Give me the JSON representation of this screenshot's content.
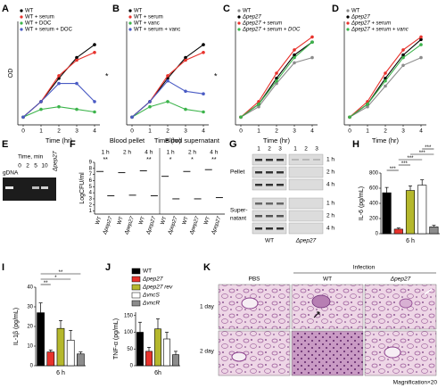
{
  "chart_data": [
    {
      "type": "line",
      "label": "A",
      "xlabel": "Time (hr)",
      "ylabel": "OD",
      "annotation": "*",
      "x": [
        0,
        1,
        2,
        3,
        4
      ],
      "xlim": [
        -0.3,
        4.3
      ],
      "xticks": [
        0,
        1,
        2,
        3,
        4
      ],
      "ylim": [
        0,
        2.0
      ],
      "series": [
        {
          "name": "WT",
          "color": "#000000",
          "values": [
            0.15,
            0.45,
            0.9,
            1.3,
            1.55
          ]
        },
        {
          "name": "WT + serum",
          "color": "#e8322c",
          "values": [
            0.15,
            0.45,
            0.95,
            1.25,
            1.4
          ]
        },
        {
          "name": "WT + DOC",
          "color": "#3cb44b",
          "values": [
            0.15,
            0.3,
            0.35,
            0.3,
            0.25
          ]
        },
        {
          "name": "WT + serum + DOC",
          "color": "#4a5bc4",
          "values": [
            0.15,
            0.45,
            0.8,
            0.8,
            0.45
          ]
        }
      ]
    },
    {
      "type": "line",
      "label": "B",
      "xlabel": "Time (hr)",
      "annotation": "*",
      "x": [
        0,
        1,
        2,
        3,
        4
      ],
      "xlim": [
        -0.3,
        4.3
      ],
      "xticks": [
        0,
        1,
        2,
        3,
        4
      ],
      "ylim": [
        0,
        2.0
      ],
      "series": [
        {
          "name": "WT",
          "color": "#000000",
          "values": [
            0.15,
            0.45,
            0.9,
            1.3,
            1.55
          ]
        },
        {
          "name": "WT + serum",
          "color": "#e8322c",
          "values": [
            0.15,
            0.45,
            0.95,
            1.25,
            1.4
          ]
        },
        {
          "name": "WT + vanc",
          "color": "#3cb44b",
          "values": [
            0.15,
            0.35,
            0.45,
            0.3,
            0.25
          ]
        },
        {
          "name": "WT + serum + vanc",
          "color": "#4a5bc4",
          "values": [
            0.15,
            0.45,
            0.85,
            0.65,
            0.6
          ]
        }
      ]
    },
    {
      "type": "line",
      "label": "C",
      "xlabel": "Time (hr)",
      "x": [
        0,
        1,
        2,
        3,
        4
      ],
      "xlim": [
        -0.3,
        4.3
      ],
      "xticks": [
        0,
        1,
        2,
        3,
        4
      ],
      "ylim": [
        0,
        2.0
      ],
      "series": [
        {
          "name": "WT",
          "color": "#8c8c8c",
          "values": [
            0.15,
            0.35,
            0.8,
            1.2,
            1.3
          ]
        },
        {
          "name": "Δpep27",
          "color": "#000000",
          "values": [
            0.15,
            0.4,
            0.9,
            1.35,
            1.6
          ]
        },
        {
          "name": "Δpep27 + serum",
          "color": "#e8322c",
          "values": [
            0.15,
            0.45,
            1.0,
            1.45,
            1.7
          ]
        },
        {
          "name": "Δpep27 + serum + DOC",
          "color": "#3cb44b",
          "values": [
            0.15,
            0.4,
            0.85,
            1.3,
            1.6
          ]
        }
      ]
    },
    {
      "type": "line",
      "label": "D",
      "xlabel": "Time (hr)",
      "x": [
        0,
        1,
        2,
        3,
        4
      ],
      "xlim": [
        -0.3,
        4.3
      ],
      "xticks": [
        0,
        1,
        2,
        3,
        4
      ],
      "ylim": [
        0,
        2.0
      ],
      "series": [
        {
          "name": "WT",
          "color": "#8c8c8c",
          "values": [
            0.15,
            0.35,
            0.75,
            1.15,
            1.3
          ]
        },
        {
          "name": "Δpep27",
          "color": "#000000",
          "values": [
            0.15,
            0.4,
            0.9,
            1.35,
            1.65
          ]
        },
        {
          "name": "Δpep27 + serum",
          "color": "#e8322c",
          "values": [
            0.15,
            0.45,
            1.0,
            1.45,
            1.7
          ]
        },
        {
          "name": "Δpep27 + serum + vanc",
          "color": "#3cb44b",
          "values": [
            0.15,
            0.4,
            0.85,
            1.3,
            1.55
          ]
        }
      ]
    },
    {
      "type": "dot",
      "label": "F",
      "ylabel": "LogCFU/ml",
      "ylim": [
        0.5,
        9
      ],
      "yticks": [
        1,
        2,
        3,
        4,
        5,
        6,
        7,
        8,
        9
      ],
      "groups": [
        {
          "title": "Blood pellet",
          "color": "#e8322c",
          "times": [
            "1 h",
            "2 h",
            "4 h"
          ],
          "categories": [
            "WT",
            "Δpep27",
            "WT",
            "Δpep27",
            "WT",
            "Δpep27"
          ],
          "values": [
            7.5,
            3.5,
            7.3,
            3.6,
            7.6,
            3.5
          ],
          "significance": [
            "**",
            null,
            "**"
          ]
        },
        {
          "title": "Blood supernatant",
          "color": "#e8322c",
          "times": [
            "1 h",
            "2 h",
            "4 h"
          ],
          "categories": [
            "WT",
            "Δpep27",
            "WT",
            "Δpep27",
            "WT",
            "Δpep27"
          ],
          "values": [
            6.7,
            3.0,
            7.5,
            3.0,
            7.8,
            3.2
          ],
          "significance": [
            "*",
            "*",
            "**"
          ]
        }
      ]
    },
    {
      "type": "bar",
      "label": "H",
      "ylabel": "IL-6 (pg/mL)",
      "categories": [
        "6 h"
      ],
      "ylim": [
        0,
        800
      ],
      "yticks": [
        0,
        200,
        400,
        600,
        800
      ],
      "series": [
        {
          "color": "#000000",
          "values": [
            540
          ],
          "errors": [
            70
          ]
        },
        {
          "color": "#e8322c",
          "values": [
            60
          ],
          "errors": [
            15
          ]
        },
        {
          "color": "#b5b82c",
          "values": [
            570
          ],
          "errors": [
            60
          ]
        },
        {
          "color": "#ffffff",
          "values": [
            640
          ],
          "errors": [
            70
          ]
        },
        {
          "color": "#8c8c8c",
          "values": [
            90
          ],
          "errors": [
            20
          ]
        }
      ],
      "significance": [
        {
          "pair": [
            0,
            1
          ],
          "label": "***"
        },
        {
          "pair": [
            1,
            2
          ],
          "label": "***"
        },
        {
          "pair": [
            1,
            3
          ],
          "label": "***"
        },
        {
          "pair": [
            2,
            4
          ],
          "label": "***"
        },
        {
          "pair": [
            3,
            4
          ],
          "label": "***"
        }
      ]
    },
    {
      "type": "bar",
      "label": "I",
      "ylabel": "IL-1β (pg/mL)",
      "categories": [
        "6 h"
      ],
      "ylim": [
        0,
        40
      ],
      "yticks": [
        0,
        10,
        20,
        30,
        40
      ],
      "series": [
        {
          "color": "#000000",
          "values": [
            27
          ],
          "errors": [
            5
          ]
        },
        {
          "color": "#e8322c",
          "values": [
            7
          ],
          "errors": [
            1
          ]
        },
        {
          "color": "#b5b82c",
          "values": [
            19
          ],
          "errors": [
            4
          ]
        },
        {
          "color": "#ffffff",
          "values": [
            13
          ],
          "errors": [
            5
          ]
        },
        {
          "color": "#8c8c8c",
          "values": [
            6
          ],
          "errors": [
            1
          ]
        }
      ],
      "significance": [
        {
          "pair": [
            0,
            1
          ],
          "label": "**"
        },
        {
          "pair": [
            0,
            3
          ],
          "label": "*"
        },
        {
          "pair": [
            0,
            4
          ],
          "label": "**"
        }
      ]
    },
    {
      "type": "bar",
      "label": "J",
      "ylabel": "TNF-α (pg/mL)",
      "categories": [
        "6h"
      ],
      "ylim": [
        0,
        160
      ],
      "yticks": [
        0,
        50,
        100,
        150
      ],
      "series": [
        {
          "name": "WT",
          "color": "#000000",
          "values": [
            100
          ],
          "errors": [
            30
          ]
        },
        {
          "name": "Δpep27",
          "color": "#e8322c",
          "values": [
            43
          ],
          "errors": [
            12
          ]
        },
        {
          "name": "Δpep27 rev",
          "color": "#b5b82c",
          "values": [
            110
          ],
          "errors": [
            30
          ]
        },
        {
          "name": "ΔvncS",
          "color": "#ffffff",
          "values": [
            80
          ],
          "errors": [
            20
          ]
        },
        {
          "name": "ΔvncR",
          "color": "#8c8c8c",
          "values": [
            33
          ],
          "errors": [
            10
          ]
        }
      ]
    }
  ],
  "panels": {
    "E": {
      "label": "E",
      "gel_label": "gDNA",
      "time_title": "Time, min",
      "times": [
        0,
        2,
        5,
        10
      ],
      "strain": "Δpep27"
    },
    "G": {
      "label": "G",
      "lanes": [
        "1",
        "2",
        "3"
      ],
      "blocks": [
        {
          "name": [
            "Pellet"
          ],
          "times": [
            "1 h",
            "2 h",
            "4 h"
          ]
        },
        {
          "name": [
            "Super-",
            "natant"
          ],
          "times": [
            "1 h",
            "2 h",
            "4 h"
          ]
        }
      ],
      "strains": [
        "WT",
        "Δpep27"
      ]
    },
    "K": {
      "label": "K",
      "group": "Infection",
      "columns": [
        "PBS",
        "WT",
        "Δpep27"
      ],
      "rows": [
        "1 day",
        "2 day"
      ],
      "magnification": "Magnification×20"
    }
  }
}
